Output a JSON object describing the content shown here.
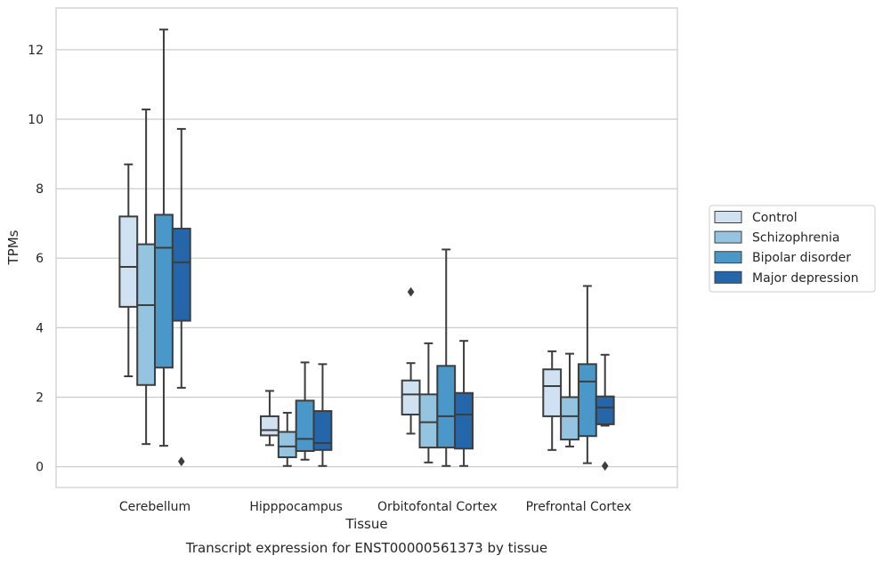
{
  "chart_data": {
    "type": "box",
    "title": "",
    "caption": "Transcript expression for ENST00000561373 by tissue",
    "xlabel": "Tissue",
    "ylabel": "TPMs",
    "ylim": [
      -0.6,
      13.2
    ],
    "yticks": [
      "0",
      "2",
      "4",
      "6",
      "8",
      "10",
      "12"
    ],
    "categories": [
      "Cerebellum",
      "Hipppocampus",
      "Orbitofontal Cortex",
      "Prefrontal Cortex"
    ],
    "grid": "horizontal",
    "legend_position": "right",
    "series": [
      {
        "name": "Control",
        "color": "#d0e1f2",
        "boxes": [
          {
            "min": 2.6,
            "q1": 4.6,
            "median": 5.75,
            "q3": 7.2,
            "max": 8.7,
            "outliers": []
          },
          {
            "min": 0.62,
            "q1": 0.9,
            "median": 1.05,
            "q3": 1.45,
            "max": 2.18,
            "outliers": []
          },
          {
            "min": 0.95,
            "q1": 1.5,
            "median": 2.08,
            "q3": 2.48,
            "max": 2.98,
            "outliers": [
              5.03
            ]
          },
          {
            "min": 0.48,
            "q1": 1.45,
            "median": 2.32,
            "q3": 2.8,
            "max": 3.32,
            "outliers": []
          }
        ]
      },
      {
        "name": "Schizophrenia",
        "color": "#94c4df",
        "boxes": [
          {
            "min": 0.65,
            "q1": 2.35,
            "median": 4.65,
            "q3": 6.4,
            "max": 10.28,
            "outliers": []
          },
          {
            "min": 0.02,
            "q1": 0.27,
            "median": 0.58,
            "q3": 1.0,
            "max": 1.55,
            "outliers": []
          },
          {
            "min": 0.12,
            "q1": 0.55,
            "median": 1.28,
            "q3": 2.08,
            "max": 3.55,
            "outliers": []
          },
          {
            "min": 0.58,
            "q1": 0.78,
            "median": 1.45,
            "q3": 2.0,
            "max": 3.25,
            "outliers": []
          }
        ]
      },
      {
        "name": "Bipolar disorder",
        "color": "#4a98c9",
        "boxes": [
          {
            "min": 0.6,
            "q1": 2.85,
            "median": 6.3,
            "q3": 7.25,
            "max": 12.58,
            "outliers": []
          },
          {
            "min": 0.2,
            "q1": 0.45,
            "median": 0.8,
            "q3": 1.9,
            "max": 3.0,
            "outliers": []
          },
          {
            "min": 0.02,
            "q1": 0.55,
            "median": 1.45,
            "q3": 2.9,
            "max": 6.25,
            "outliers": []
          },
          {
            "min": 0.1,
            "q1": 0.88,
            "median": 2.45,
            "q3": 2.95,
            "max": 5.2,
            "outliers": []
          }
        ]
      },
      {
        "name": "Major depression",
        "color": "#2566ab",
        "boxes": [
          {
            "min": 2.27,
            "q1": 4.2,
            "median": 5.88,
            "q3": 6.85,
            "max": 9.72,
            "outliers": [
              0.15
            ]
          },
          {
            "min": 0.02,
            "q1": 0.48,
            "median": 0.68,
            "q3": 1.6,
            "max": 2.95,
            "outliers": []
          },
          {
            "min": 0.02,
            "q1": 0.52,
            "median": 1.5,
            "q3": 2.12,
            "max": 3.62,
            "outliers": []
          },
          {
            "min": 1.18,
            "q1": 1.22,
            "median": 1.7,
            "q3": 2.02,
            "max": 3.22,
            "outliers": [
              0.02
            ]
          }
        ]
      }
    ]
  }
}
